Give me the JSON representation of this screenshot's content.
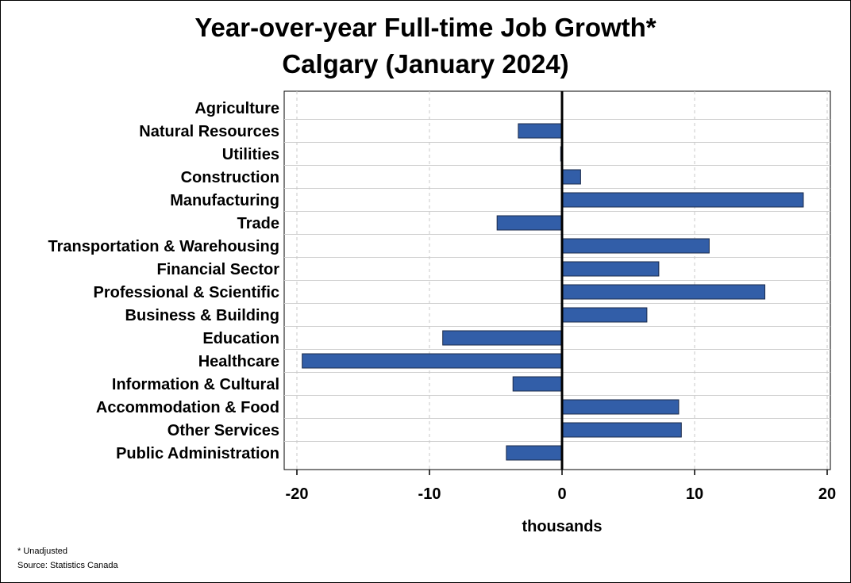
{
  "chart_data": {
    "type": "bar",
    "orientation": "horizontal",
    "title": "Year-over-year Full-time Job Growth*",
    "subtitle": "Calgary (January 2024)",
    "xlabel": "thousands",
    "ylabel": "",
    "xlim": [
      -20,
      20
    ],
    "xticks": [
      "-20",
      "-10",
      "0",
      "10",
      "20"
    ],
    "categories": [
      "Agriculture",
      "Natural Resources",
      "Utilities",
      "Construction",
      "Manufacturing",
      "Trade",
      "Transportation & Warehousing",
      "Financial Sector",
      "Professional & Scientific",
      "Business & Building",
      "Education",
      "Healthcare",
      "Information & Cultural",
      "Accommodation & Food",
      "Other Services",
      "Public Administration"
    ],
    "values": [
      0,
      -3.3,
      -0.1,
      1.4,
      18.2,
      -4.9,
      11.1,
      7.3,
      15.3,
      6.4,
      -9.0,
      -19.6,
      -3.7,
      8.8,
      9.0,
      -4.2
    ],
    "bar_color": "#325ea8",
    "grid": "vertical dashed at x ticks",
    "legend": "none"
  },
  "footnote": "* Unadjusted",
  "source": "Source: Statistics Canada"
}
